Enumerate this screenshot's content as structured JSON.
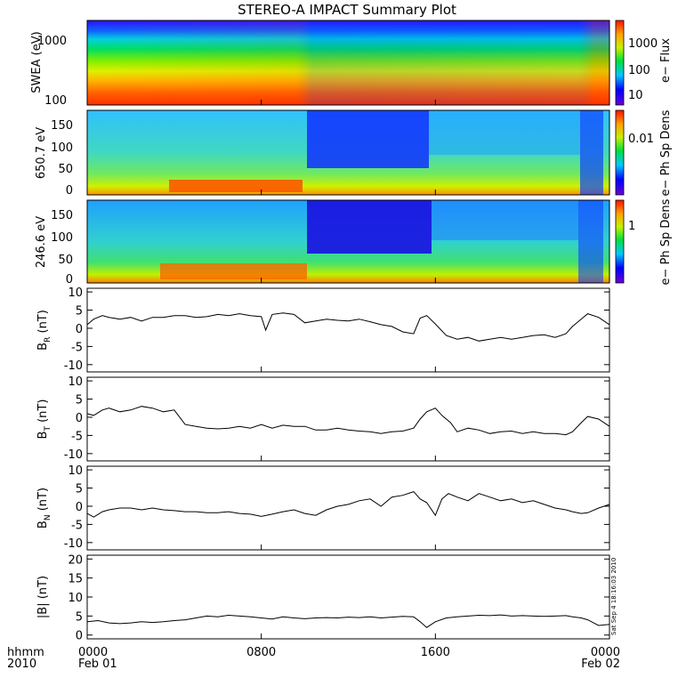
{
  "title": "STEREO-A IMPACT Summary Plot",
  "footer": {
    "row1_label": "hhmm",
    "row2_label": "2010"
  },
  "side_stamp": "Sat Sep  4 18:16:03 2010",
  "colors": {
    "frame": "#000000",
    "line": "#000000",
    "background": "#ffffff"
  },
  "chart_data": [
    {
      "type": "heatmap",
      "ylabel": "SWEA (eV)",
      "yscale": "log",
      "ylim": [
        95,
        2000
      ],
      "yticks": [
        "100",
        "1000"
      ],
      "colorbar": {
        "label": "e− Flux",
        "scale": "log",
        "ticks": [
          "10",
          "100",
          "1000"
        ]
      },
      "x_range": [
        "Feb 01 0000",
        "Feb 02 0000"
      ]
    },
    {
      "type": "heatmap",
      "ylabel": "650.7 eV",
      "ylim": [
        -10,
        180
      ],
      "yticks": [
        "0",
        "50",
        "100",
        "150"
      ],
      "colorbar": {
        "label": "e− Ph Sp Dens",
        "scale": "log",
        "ticks": [
          "0.01"
        ]
      },
      "x_range": [
        "Feb 01 0000",
        "Feb 02 0000"
      ]
    },
    {
      "type": "heatmap",
      "ylabel": "246.6 eV",
      "ylim": [
        -10,
        180
      ],
      "yticks": [
        "0",
        "50",
        "100",
        "150"
      ],
      "colorbar": {
        "label": "e− Ph Sp Dens",
        "scale": "log",
        "ticks": [
          "1"
        ]
      },
      "x_range": [
        "Feb 01 0000",
        "Feb 02 0000"
      ]
    },
    {
      "type": "line",
      "ylabel_main": "B",
      "ylabel_sub": "R",
      "ylabel_unit": " (nT)",
      "ylim": [
        -12,
        11
      ],
      "yticks": [
        10,
        5,
        0,
        -5,
        -10
      ],
      "x_hours": [
        0,
        0.3,
        0.7,
        1,
        1.5,
        2,
        2.5,
        3,
        3.5,
        4,
        4.5,
        5,
        5.5,
        6,
        6.5,
        7,
        7.5,
        8,
        8.2,
        8.5,
        9,
        9.5,
        10,
        10.5,
        11,
        11.5,
        12,
        12.5,
        13,
        13.5,
        14,
        14.5,
        15,
        15.3,
        15.6,
        16,
        16.5,
        17,
        17.5,
        18,
        18.5,
        19,
        19.5,
        20,
        20.5,
        21,
        21.5,
        22,
        22.3,
        22.7,
        23,
        23.5,
        24
      ],
      "y": [
        1,
        2.5,
        3.5,
        3,
        2.5,
        3,
        2,
        3,
        3,
        3.5,
        3.5,
        3,
        3.2,
        3.8,
        3.5,
        4,
        3.5,
        3.2,
        -0.5,
        3.8,
        4.2,
        3.8,
        1.5,
        2,
        2.5,
        2.2,
        2,
        2.5,
        1.8,
        1,
        0.5,
        -1,
        -1.5,
        2.8,
        3.5,
        1.2,
        -2,
        -3,
        -2.5,
        -3.5,
        -3,
        -2.5,
        -3,
        -2.5,
        -2,
        -1.8,
        -2.5,
        -1.5,
        0.5,
        2.5,
        4,
        3,
        1
      ]
    },
    {
      "type": "line",
      "ylabel_main": "B",
      "ylabel_sub": "T",
      "ylabel_unit": " (nT)",
      "ylim": [
        -12,
        11
      ],
      "yticks": [
        10,
        5,
        0,
        -5,
        -10
      ],
      "x_hours": [
        0,
        0.3,
        0.7,
        1,
        1.5,
        2,
        2.5,
        3,
        3.5,
        4,
        4.5,
        5,
        5.5,
        6,
        6.5,
        7,
        7.5,
        8,
        8.5,
        9,
        9.5,
        10,
        10.5,
        11,
        11.5,
        12,
        12.5,
        13,
        13.5,
        14,
        14.5,
        15,
        15.3,
        15.6,
        16,
        16.3,
        16.7,
        17,
        17.5,
        18,
        18.5,
        19,
        19.5,
        20,
        20.5,
        21,
        21.5,
        22,
        22.3,
        22.7,
        23,
        23.5,
        24
      ],
      "y": [
        1,
        0.5,
        2,
        2.5,
        1.5,
        2,
        3,
        2.5,
        1.5,
        2,
        -2,
        -2.5,
        -3,
        -3.2,
        -3,
        -2.5,
        -3,
        -2,
        -3,
        -2.2,
        -2.5,
        -2.5,
        -3.5,
        -3.5,
        -3,
        -3.5,
        -3.8,
        -4,
        -4.5,
        -4,
        -3.8,
        -3,
        -0.5,
        1.5,
        2.5,
        0.5,
        -1.5,
        -4,
        -3,
        -3.5,
        -4.5,
        -4,
        -3.8,
        -4.5,
        -4,
        -4.5,
        -4.5,
        -4.8,
        -4,
        -1.5,
        0.2,
        -0.5,
        -2.5
      ]
    },
    {
      "type": "line",
      "ylabel_main": "B",
      "ylabel_sub": "N",
      "ylabel_unit": " (nT)",
      "ylim": [
        -12,
        11
      ],
      "yticks": [
        10,
        5,
        0,
        -5,
        -10
      ],
      "x_hours": [
        0,
        0.3,
        0.7,
        1,
        1.5,
        2,
        2.5,
        3,
        3.5,
        4,
        4.5,
        5,
        5.5,
        6,
        6.5,
        7,
        7.5,
        8,
        8.5,
        9,
        9.5,
        10,
        10.5,
        11,
        11.5,
        12,
        12.5,
        13,
        13.5,
        14,
        14.5,
        15,
        15.3,
        15.6,
        16,
        16.3,
        16.6,
        17,
        17.5,
        18,
        18.5,
        19,
        19.5,
        20,
        20.5,
        21,
        21.5,
        22,
        22.3,
        22.7,
        23,
        23.5,
        24
      ],
      "y": [
        -2,
        -3,
        -1.5,
        -1,
        -0.5,
        -0.5,
        -1,
        -0.5,
        -1,
        -1.2,
        -1.5,
        -1.5,
        -1.8,
        -1.8,
        -1.5,
        -2,
        -2.2,
        -2.8,
        -2.2,
        -1.5,
        -1,
        -2,
        -2.5,
        -1,
        0,
        0.5,
        1.5,
        2,
        0,
        2.5,
        3,
        4,
        2,
        1,
        -2.5,
        2,
        3.5,
        2.5,
        1.5,
        3.5,
        2.5,
        1.5,
        2,
        1,
        1.5,
        0.5,
        -0.5,
        -1,
        -1.5,
        -2,
        -1.8,
        -0.5,
        0.5
      ]
    },
    {
      "type": "line",
      "ylabel": "|B| (nT)",
      "ylim": [
        -1,
        21
      ],
      "yticks": [
        20,
        15,
        10,
        5,
        0
      ],
      "x_hours": [
        0,
        0.5,
        1,
        1.5,
        2,
        2.5,
        3,
        3.5,
        4,
        4.5,
        5,
        5.5,
        6,
        6.5,
        7,
        7.5,
        8,
        8.5,
        9,
        9.5,
        10,
        10.5,
        11,
        11.5,
        12,
        12.5,
        13,
        13.5,
        14,
        14.5,
        15,
        15.3,
        15.6,
        16,
        16.5,
        17,
        17.5,
        18,
        18.5,
        19,
        19.5,
        20,
        20.5,
        21,
        21.5,
        22,
        22.3,
        22.7,
        23,
        23.5,
        24
      ],
      "y": [
        3.5,
        3.8,
        3.2,
        3,
        3.2,
        3.5,
        3.3,
        3.5,
        3.8,
        4,
        4.5,
        5,
        4.8,
        5.2,
        5,
        4.8,
        4.5,
        4.2,
        4.8,
        4.5,
        4.3,
        4.5,
        4.6,
        4.5,
        4.7,
        4.6,
        4.8,
        4.5,
        4.7,
        4.9,
        4.8,
        3.5,
        2,
        3.5,
        4.5,
        4.8,
        5,
        5.2,
        5.1,
        5.3,
        5,
        5.1,
        5,
        4.9,
        5,
        5.1,
        4.8,
        4.5,
        4,
        2.5,
        2.8
      ]
    }
  ],
  "x_axis": {
    "ticks": [
      {
        "hour": 0,
        "top": "0000",
        "bottom": "Feb 01"
      },
      {
        "hour": 8,
        "top": "0800",
        "bottom": ""
      },
      {
        "hour": 16,
        "top": "1600",
        "bottom": ""
      },
      {
        "hour": 24,
        "top": "0000",
        "bottom": "Feb 02"
      }
    ],
    "range_hours": [
      0,
      24
    ]
  }
}
